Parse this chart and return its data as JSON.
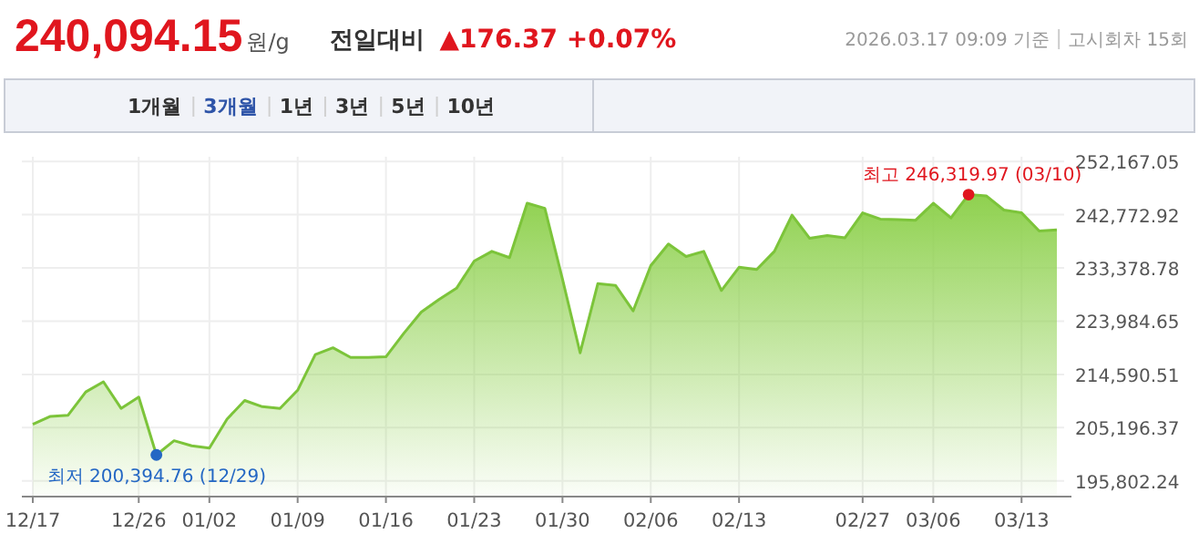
{
  "chart_data": {
    "type": "area",
    "title": "240,094.15",
    "subtitle": "원/g",
    "categories": [
      "12/17",
      null,
      null,
      null,
      null,
      null,
      "12/26",
      null,
      null,
      null,
      "01/02",
      null,
      null,
      null,
      null,
      "01/09",
      null,
      null,
      null,
      null,
      "01/16",
      null,
      null,
      null,
      null,
      "01/23",
      null,
      null,
      null,
      null,
      "01/30",
      null,
      null,
      null,
      null,
      "02/06",
      null,
      null,
      null,
      null,
      "02/13",
      null,
      null,
      null,
      null,
      null,
      null,
      "02/27",
      null,
      null,
      null,
      "03/06",
      null,
      null,
      null,
      null,
      "03/13",
      null,
      null
    ],
    "values": [
      205800,
      207200,
      207400,
      211500,
      213300,
      208600,
      210600,
      200394.76,
      202900,
      202000,
      201600,
      206700,
      210000,
      208900,
      208600,
      211800,
      218100,
      219300,
      217600,
      217600,
      217700,
      221800,
      225600,
      227800,
      229800,
      234600,
      236300,
      235200,
      244800,
      243900,
      231400,
      218400,
      230600,
      230300,
      225800,
      233800,
      237600,
      235400,
      236300,
      229400,
      233500,
      233100,
      236300,
      242700,
      238600,
      239100,
      238700,
      243100,
      242000,
      241900,
      241800,
      244800,
      242200,
      246319.97,
      246100,
      243600,
      243100,
      239900,
      240094.15
    ],
    "color": "#8fd14f",
    "ylim": [
      193200,
      253000
    ],
    "yticks": [
      {
        "value": 195802.24,
        "label": "195,802.24"
      },
      {
        "value": 205196.37,
        "label": "205,196.37"
      },
      {
        "value": 214590.51,
        "label": "214,590.51"
      },
      {
        "value": 223984.65,
        "label": "223,984.65"
      },
      {
        "value": 233378.78,
        "label": "233,378.78"
      },
      {
        "value": 242772.92,
        "label": "242,772.92"
      },
      {
        "value": 252167.05,
        "label": "252,167.05"
      }
    ],
    "grid": true,
    "annotations": [
      "전일대비",
      "▲176.37 +0.07%",
      "2026.03.17 09:09 기준",
      "고시회차 15회",
      "1개월",
      "3개월",
      "1년",
      "3년",
      "5년",
      "10년",
      {
        "text": "최저 200,394.76 (12/29)",
        "y": 200394.76
      },
      {
        "text": "최고 246,319.97 (03/10)",
        "y": 246319.97
      }
    ]
  }
}
